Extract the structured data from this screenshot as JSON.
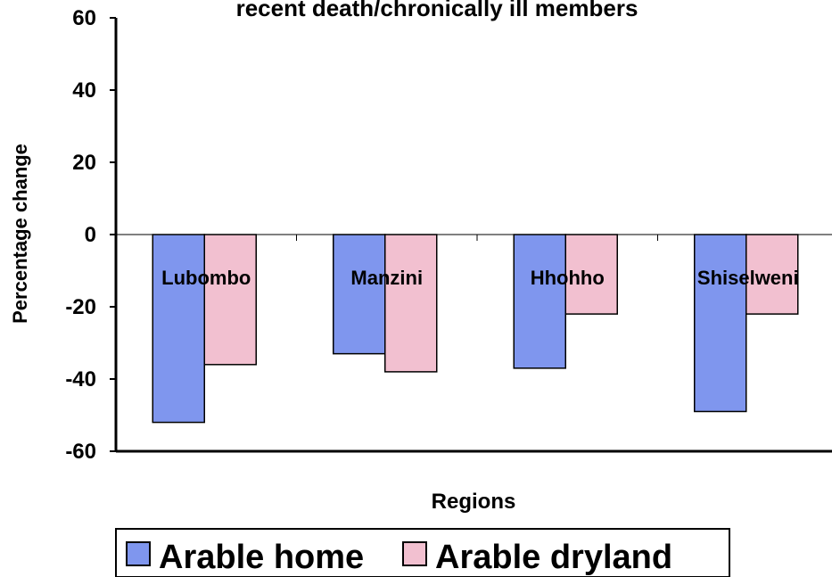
{
  "chart_data": {
    "type": "bar",
    "title": "recent death/chronically ill members",
    "x_label": "Regions",
    "y_label": "Percentage change",
    "categories": [
      "Lubombo",
      "Manzini",
      "Hhohho",
      "Shiselweni"
    ],
    "series": [
      {
        "name": "Arable home",
        "color": "#7f96ee",
        "values": [
          -52,
          -33,
          -37,
          -49
        ]
      },
      {
        "name": "Arable dryland",
        "color": "#f2c0d0",
        "values": [
          -36,
          -38,
          -22,
          -22
        ]
      }
    ],
    "ylim": [
      -60,
      60
    ],
    "yticks": [
      -60,
      -40,
      -20,
      0,
      20,
      40,
      60
    ],
    "legend": "bottom"
  }
}
